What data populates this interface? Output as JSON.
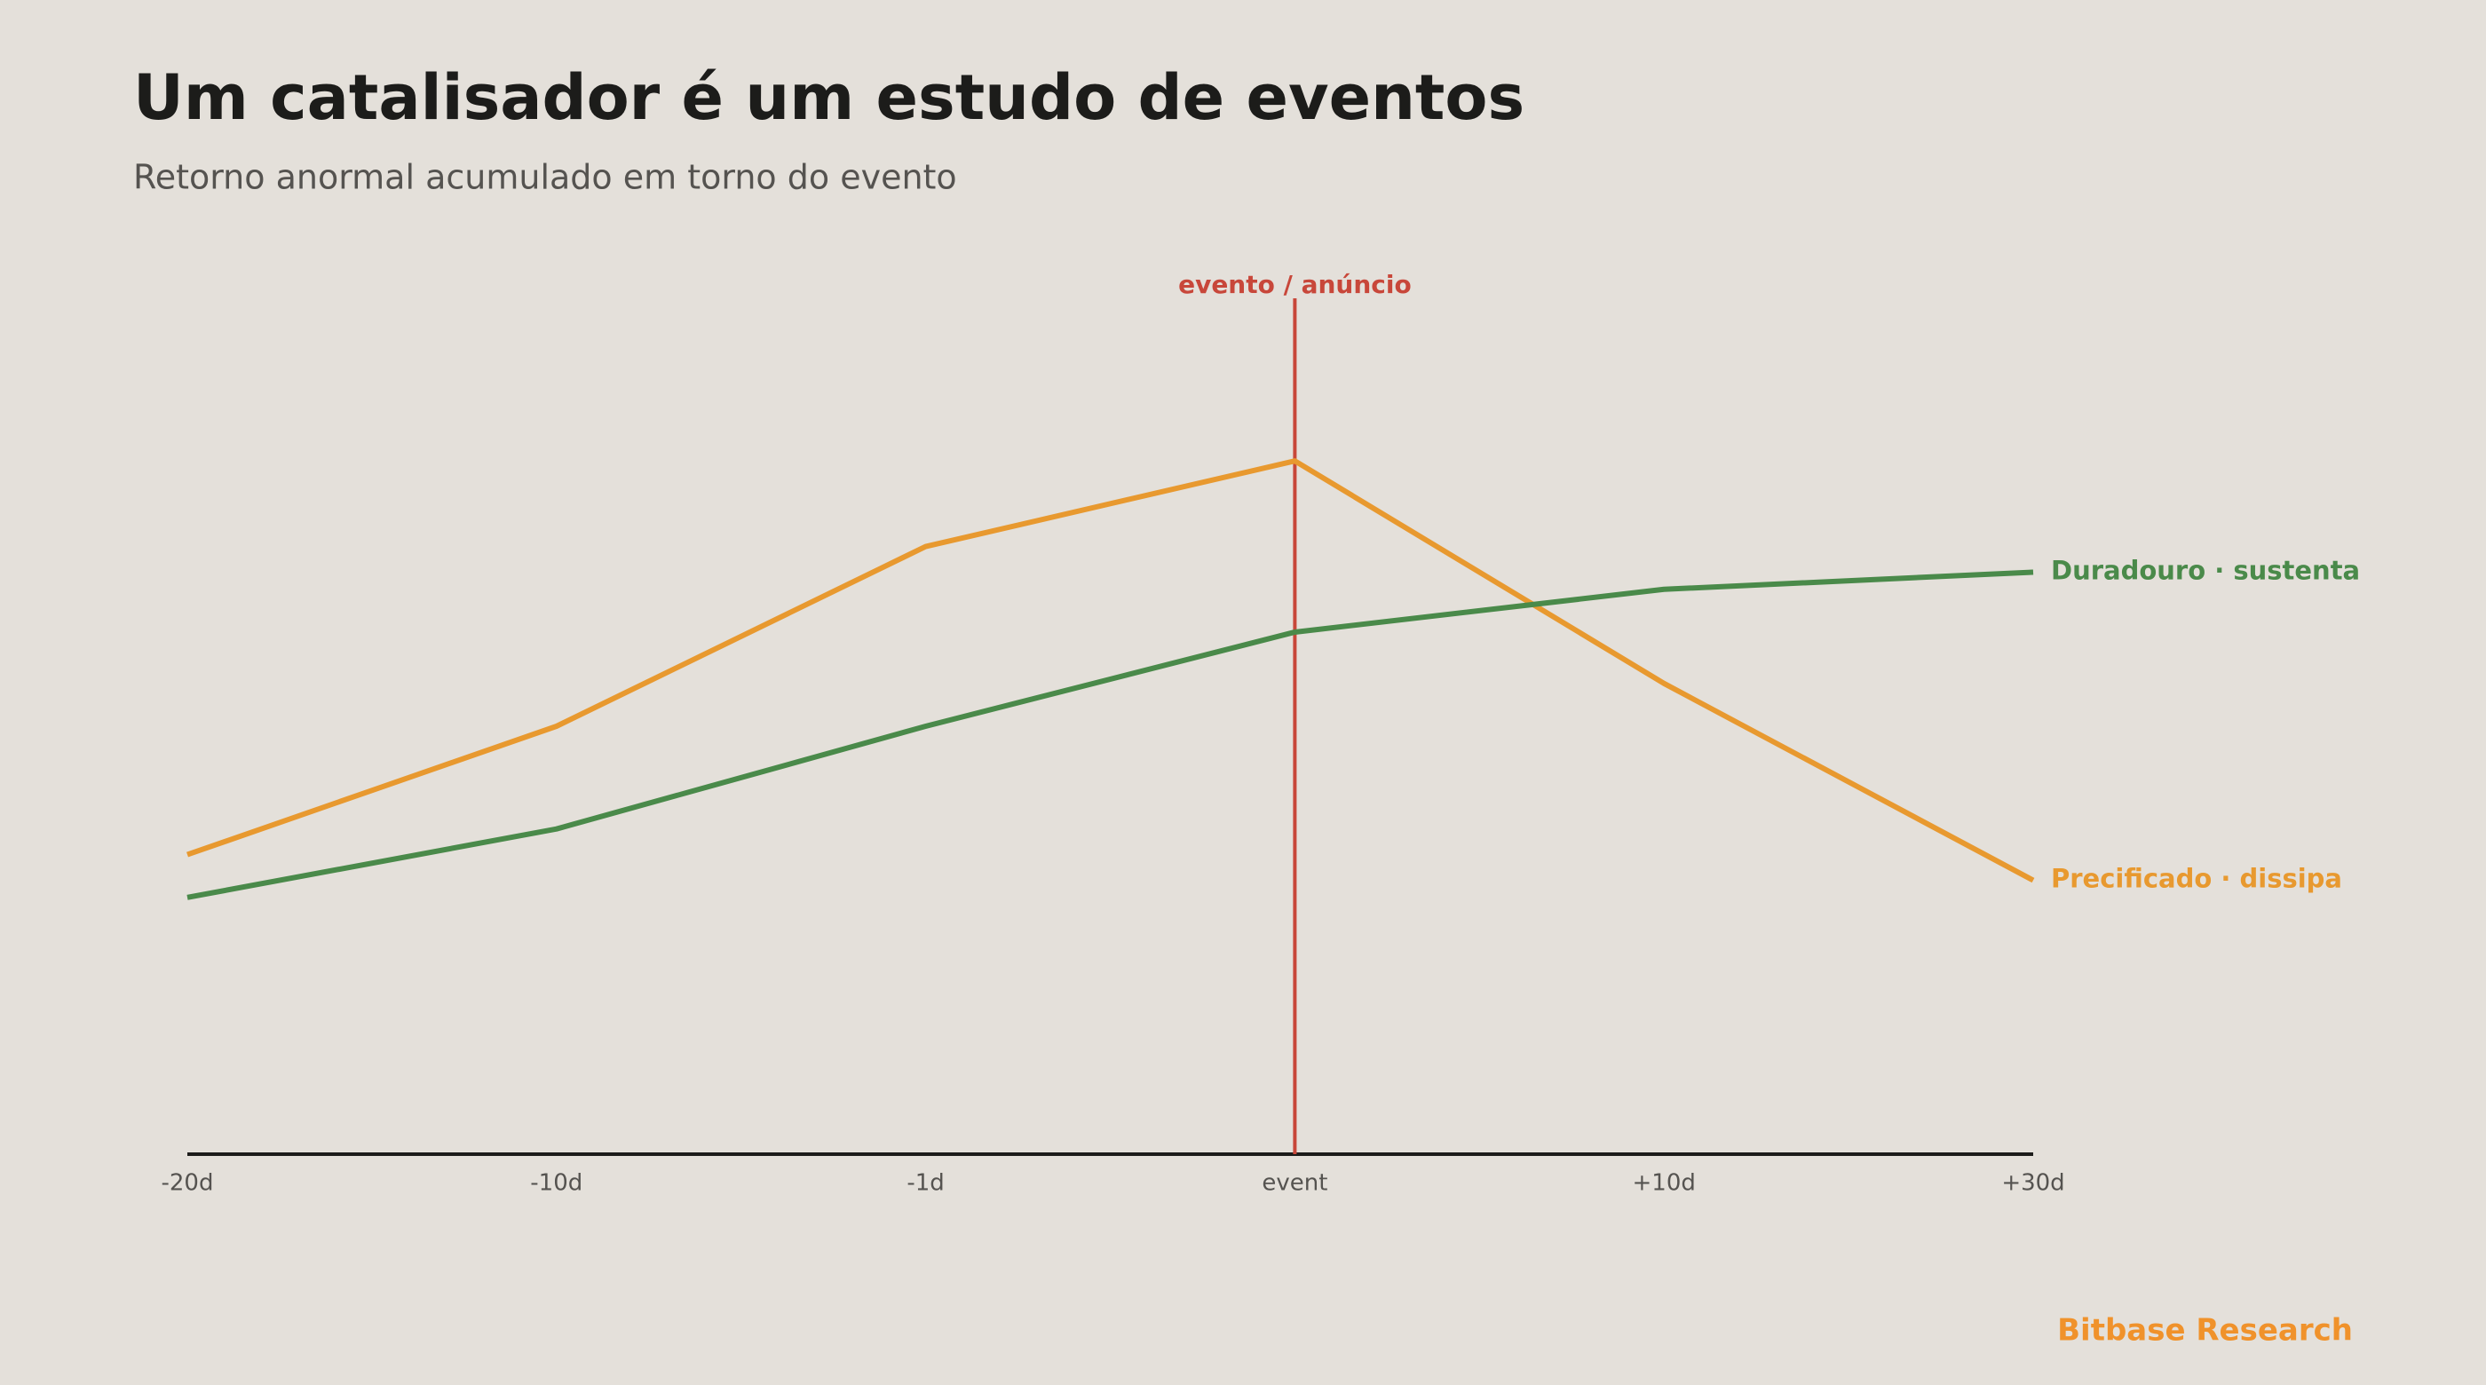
{
  "chart_data": {
    "type": "line",
    "title": "Um catalisador é um estudo de eventos",
    "subtitle": "Retorno anormal acumulado em torno do evento",
    "categories": [
      "-20d",
      "-10d",
      "-1d",
      "event",
      "+10d",
      "+30d"
    ],
    "series": [
      {
        "name": "Precificado · dissipa",
        "color": "#e8992f",
        "values": [
          35,
          50,
          71,
          81,
          55,
          32
        ]
      },
      {
        "name": "Duradouro · sustenta",
        "color": "#4a8a4a",
        "values": [
          30,
          38,
          50,
          61,
          66,
          68
        ]
      }
    ],
    "ylim": [
      0,
      100
    ],
    "annotation": {
      "text": "evento / anúncio",
      "category": "event",
      "color": "#c8473a"
    },
    "source": "Bitbase Research"
  }
}
